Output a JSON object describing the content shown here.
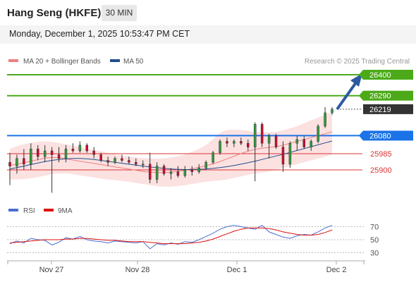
{
  "header": {
    "title": "Hang Seng (HKFE)",
    "timeframe": "30 MIN"
  },
  "datetime": "Monday, December 1, 2025 10:53:47 PM CET",
  "legend": {
    "ma20": "MA 20 + Bollinger Bands",
    "ma50": "MA 50",
    "ma20_color": "#f08080",
    "ma50_color": "#1f4e8c"
  },
  "credit": "Research © 2025 Trading Central",
  "rsi_legend": {
    "rsi": "RSI",
    "ma9": "9MA",
    "rsi_color": "#4a6fd0",
    "ma9_color": "#dd1111"
  },
  "chart_data": [
    {
      "type": "candlestick",
      "title": "Hang Seng (HKFE)",
      "ylim": [
        25700,
        26520
      ],
      "x_labels": [
        "Nov 27",
        "Nov 28",
        "Dec 1",
        "Dec 2"
      ],
      "price_levels": [
        {
          "label": "26400",
          "value": 26400,
          "color": "#4caa19",
          "kind": "resistance"
        },
        {
          "label": "26290",
          "value": 26290,
          "color": "#4caa19",
          "kind": "resistance"
        },
        {
          "label": "26219",
          "value": 26219,
          "color": "#333333",
          "kind": "last-price"
        },
        {
          "label": "26080",
          "value": 26080,
          "color": "#1a73e8",
          "kind": "pivot"
        },
        {
          "label": "25985",
          "value": 25985,
          "color": "#dd3333",
          "kind": "support"
        },
        {
          "label": "25900",
          "value": 25900,
          "color": "#dd3333",
          "kind": "support"
        }
      ],
      "series": [
        {
          "name": "MA 20",
          "values": [
            25924,
            25930,
            25938,
            25946,
            25954,
            25962,
            25966,
            25964,
            25958,
            25952,
            25946,
            25940,
            25934,
            25928,
            25922,
            25916,
            25910,
            25904,
            25898,
            25892,
            25888,
            25886,
            25886,
            25888,
            25892,
            25898,
            25906,
            25914,
            25922,
            25932,
            25944,
            25958,
            25972,
            25986,
            25998,
            26008,
            26014,
            26018,
            26022,
            26030,
            26040,
            26050,
            26060,
            26070,
            26080,
            26090,
            26100
          ]
        },
        {
          "name": "MA 50",
          "values": [
            25905,
            25912,
            25920,
            25928,
            25936,
            25944,
            25950,
            25955,
            25958,
            25960,
            25960,
            25958,
            25955,
            25950,
            25945,
            25940,
            25935,
            25930,
            25925,
            25920,
            25916,
            25912,
            25908,
            25905,
            25903,
            25902,
            25902,
            25903,
            25905,
            25908,
            25912,
            25917,
            25923,
            25930,
            25938,
            25946,
            25955,
            25964,
            25973,
            25982,
            25992,
            26002,
            26012,
            26022,
            26032,
            26042,
            26052
          ]
        },
        {
          "name": "BB Upper",
          "values": [
            26010,
            26025,
            26035,
            26042,
            26048,
            26050,
            26048,
            26042,
            26035,
            26028,
            26020,
            26012,
            26005,
            25998,
            25990,
            25982,
            25975,
            25970,
            25965,
            25962,
            25960,
            25958,
            25960,
            25965,
            25972,
            25982,
            25995,
            26010,
            26030,
            26060,
            26095,
            26110,
            26112,
            26110,
            26105,
            26100,
            26098,
            26098,
            26100,
            26108,
            26118,
            26130,
            26145,
            26160,
            26175,
            26190,
            26205
          ]
        },
        {
          "name": "BB Lower",
          "values": [
            25850,
            25850,
            25852,
            25856,
            25862,
            25870,
            25878,
            25882,
            25882,
            25878,
            25872,
            25866,
            25860,
            25854,
            25850,
            25846,
            25842,
            25838,
            25832,
            25826,
            25820,
            25815,
            25812,
            25812,
            25815,
            25820,
            25826,
            25832,
            25838,
            25842,
            25845,
            25850,
            25858,
            25866,
            25874,
            25880,
            25886,
            25892,
            25900,
            25910,
            25920,
            25930,
            25940,
            25950,
            25960,
            25970,
            25980
          ]
        }
      ],
      "candles": [
        {
          "o": 25940,
          "h": 25990,
          "l": 25820,
          "c": 25920
        },
        {
          "o": 25920,
          "h": 25980,
          "l": 25880,
          "c": 25960
        },
        {
          "o": 25960,
          "h": 26010,
          "l": 25900,
          "c": 25930
        },
        {
          "o": 25930,
          "h": 26040,
          "l": 25900,
          "c": 26010
        },
        {
          "o": 26010,
          "h": 26030,
          "l": 25950,
          "c": 25970
        },
        {
          "o": 25970,
          "h": 26030,
          "l": 25940,
          "c": 26000
        },
        {
          "o": 26000,
          "h": 26020,
          "l": 25780,
          "c": 25980
        },
        {
          "o": 25980,
          "h": 26020,
          "l": 25940,
          "c": 25960
        },
        {
          "o": 25960,
          "h": 26030,
          "l": 25940,
          "c": 26010
        },
        {
          "o": 26010,
          "h": 26040,
          "l": 25990,
          "c": 26000
        },
        {
          "o": 26000,
          "h": 26050,
          "l": 25990,
          "c": 26030
        },
        {
          "o": 26030,
          "h": 26040,
          "l": 25990,
          "c": 26000
        },
        {
          "o": 26000,
          "h": 26020,
          "l": 25960,
          "c": 25980
        },
        {
          "o": 25980,
          "h": 25990,
          "l": 25940,
          "c": 25950
        },
        {
          "o": 25950,
          "h": 25970,
          "l": 25920,
          "c": 25940
        },
        {
          "o": 25940,
          "h": 25970,
          "l": 25930,
          "c": 25960
        },
        {
          "o": 25960,
          "h": 25980,
          "l": 25940,
          "c": 25950
        },
        {
          "o": 25950,
          "h": 25970,
          "l": 25930,
          "c": 25940
        },
        {
          "o": 25940,
          "h": 25960,
          "l": 25920,
          "c": 25930
        },
        {
          "o": 25930,
          "h": 25950,
          "l": 25910,
          "c": 25930
        },
        {
          "o": 25930,
          "h": 25990,
          "l": 25830,
          "c": 25850
        },
        {
          "o": 25850,
          "h": 25940,
          "l": 25830,
          "c": 25920
        },
        {
          "o": 25920,
          "h": 25930,
          "l": 25870,
          "c": 25880
        },
        {
          "o": 25880,
          "h": 25910,
          "l": 25850,
          "c": 25890
        },
        {
          "o": 25890,
          "h": 25920,
          "l": 25860,
          "c": 25870
        },
        {
          "o": 25870,
          "h": 25920,
          "l": 25860,
          "c": 25900
        },
        {
          "o": 25900,
          "h": 25920,
          "l": 25870,
          "c": 25890
        },
        {
          "o": 25890,
          "h": 25930,
          "l": 25880,
          "c": 25910
        },
        {
          "o": 25910,
          "h": 25950,
          "l": 25900,
          "c": 25940
        },
        {
          "o": 25940,
          "h": 26000,
          "l": 25930,
          "c": 25990
        },
        {
          "o": 25990,
          "h": 26060,
          "l": 25980,
          "c": 26050
        },
        {
          "o": 26050,
          "h": 26070,
          "l": 26020,
          "c": 26040
        },
        {
          "o": 26040,
          "h": 26060,
          "l": 26020,
          "c": 26050
        },
        {
          "o": 26050,
          "h": 26070,
          "l": 26030,
          "c": 26040
        },
        {
          "o": 26040,
          "h": 26060,
          "l": 26000,
          "c": 26020
        },
        {
          "o": 26020,
          "h": 26150,
          "l": 25840,
          "c": 26140
        },
        {
          "o": 26140,
          "h": 26150,
          "l": 26020,
          "c": 26040
        },
        {
          "o": 26040,
          "h": 26090,
          "l": 25960,
          "c": 26080
        },
        {
          "o": 26080,
          "h": 26090,
          "l": 26010,
          "c": 26020
        },
        {
          "o": 26020,
          "h": 26050,
          "l": 25890,
          "c": 25930
        },
        {
          "o": 25930,
          "h": 26050,
          "l": 25910,
          "c": 26040
        },
        {
          "o": 26040,
          "h": 26080,
          "l": 26000,
          "c": 26060
        },
        {
          "o": 26060,
          "h": 26080,
          "l": 26010,
          "c": 26020
        },
        {
          "o": 26020,
          "h": 26060,
          "l": 26000,
          "c": 26050
        },
        {
          "o": 26050,
          "h": 26140,
          "l": 26040,
          "c": 26130
        },
        {
          "o": 26130,
          "h": 26230,
          "l": 26120,
          "c": 26200
        },
        {
          "o": 26200,
          "h": 26230,
          "l": 26190,
          "c": 26219
        }
      ]
    },
    {
      "type": "line",
      "title": "RSI",
      "ylim": [
        20,
        80
      ],
      "y_ticks": [
        70,
        50,
        30
      ],
      "x_labels": [
        "Nov 27",
        "Nov 28",
        "Dec 1",
        "Dec 2"
      ],
      "series": [
        {
          "name": "RSI",
          "values": [
            44,
            48,
            45,
            52,
            50,
            49,
            42,
            46,
            53,
            51,
            55,
            50,
            48,
            47,
            45,
            48,
            47,
            46,
            45,
            47,
            36,
            44,
            42,
            45,
            43,
            47,
            46,
            50,
            55,
            60,
            66,
            70,
            72,
            70,
            68,
            66,
            72,
            62,
            58,
            54,
            52,
            56,
            58,
            57,
            62,
            68,
            72
          ]
        },
        {
          "name": "9MA",
          "values": [
            45,
            46,
            47,
            48,
            49,
            50,
            50,
            50,
            51,
            51,
            52,
            52,
            51,
            50,
            49,
            49,
            48,
            47,
            47,
            47,
            46,
            45,
            44,
            44,
            44,
            44,
            45,
            46,
            48,
            51,
            55,
            59,
            63,
            66,
            68,
            68,
            68,
            67,
            65,
            62,
            60,
            58,
            57,
            57,
            58,
            61,
            65
          ]
        }
      ]
    }
  ]
}
